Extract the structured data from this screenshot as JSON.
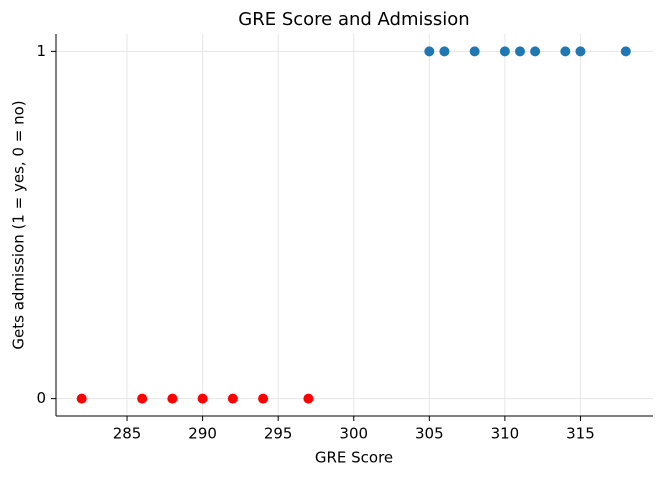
{
  "chart_data": {
    "type": "scatter",
    "title": "GRE Score and Admission",
    "x_label": "GRE Score",
    "y_label": "Gets admission (1 = yes, 0 = no)",
    "series": [
      {
        "color": "#ff0000",
        "x": [
          282,
          286,
          288,
          290,
          292,
          294,
          297
        ],
        "values": [
          0,
          0,
          0,
          0,
          0,
          0,
          0
        ]
      },
      {
        "color": "#1f77b4",
        "x": [
          305,
          306,
          308,
          310,
          311,
          312,
          314,
          315,
          318
        ],
        "values": [
          1,
          1,
          1,
          1,
          1,
          1,
          1,
          1,
          1
        ]
      }
    ],
    "xlim": [
      280.3,
      319.8
    ],
    "xticks": [
      285,
      290,
      295,
      300,
      305,
      310,
      315
    ],
    "ylim": [
      -0.05,
      1.05
    ],
    "yticks": [
      0,
      1
    ],
    "grid": true
  }
}
